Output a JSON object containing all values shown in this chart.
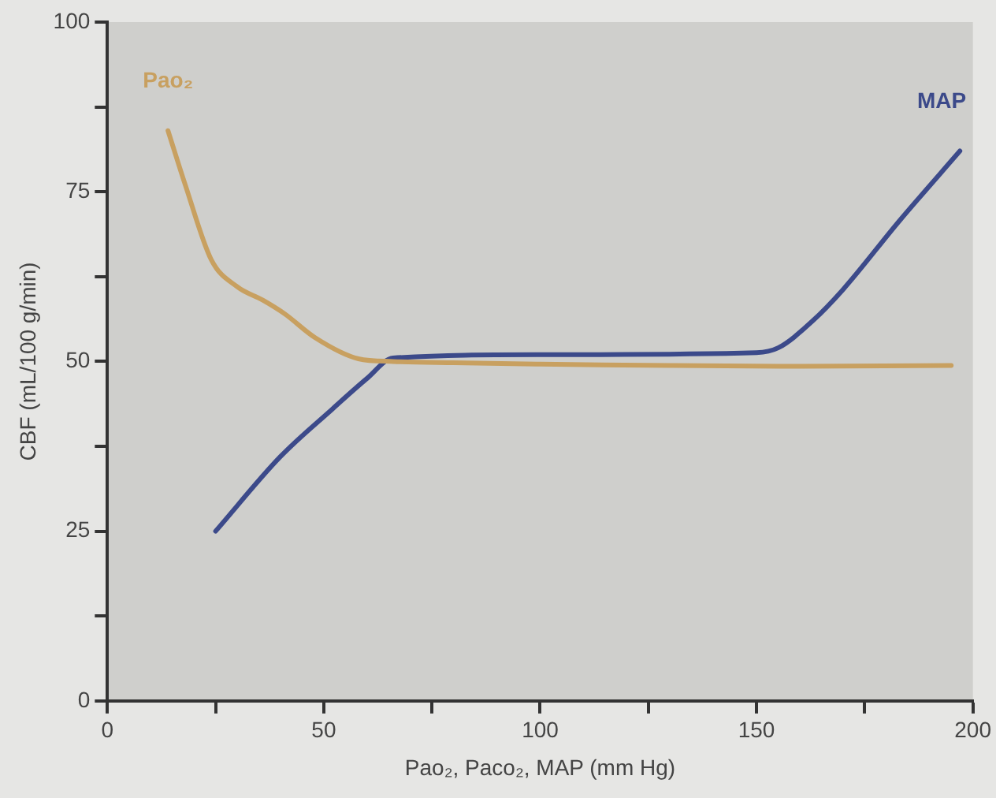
{
  "chart_data": {
    "type": "line",
    "xlabel": "Pao₂, Paco₂, MAP (mm Hg)",
    "ylabel": "CBF (mL/100 g/min)",
    "xlim": [
      0,
      200
    ],
    "xticks": [
      0,
      {
        "value": 25,
        "label": null
      },
      50,
      {
        "value": 75,
        "label": null
      },
      100,
      {
        "value": 125,
        "label": null
      },
      150,
      {
        "value": 175,
        "label": null
      },
      200
    ],
    "ylim": [
      0,
      100
    ],
    "yticks": [
      0,
      {
        "value": 12.5,
        "label": null
      },
      25,
      {
        "value": 37.5,
        "label": null
      },
      50,
      {
        "value": 62.5,
        "label": null
      },
      75,
      {
        "value": 87.5,
        "label": null
      },
      100
    ],
    "grid": false,
    "legend": false,
    "marker": "none",
    "line_style": "solid",
    "series": [
      {
        "name": "Pao₂",
        "color": "#c8a060",
        "x": [
          14,
          18,
          24,
          30,
          36,
          41,
          48,
          58,
          66,
          80,
          100,
          130,
          160,
          195
        ],
        "values": [
          84,
          76,
          65,
          61,
          59,
          57,
          53.5,
          50.4,
          50,
          49.8,
          49.6,
          49.4,
          49.3,
          49.4
        ]
      },
      {
        "name": "MAP",
        "color": "#3c4a8a",
        "x": [
          25,
          40,
          52,
          60,
          66,
          100,
          150,
          155,
          163,
          170,
          183,
          197
        ],
        "values": [
          25,
          36,
          43,
          47.5,
          50.5,
          51,
          51.3,
          52,
          56,
          60.6,
          70.7,
          81
        ]
      }
    ]
  }
}
